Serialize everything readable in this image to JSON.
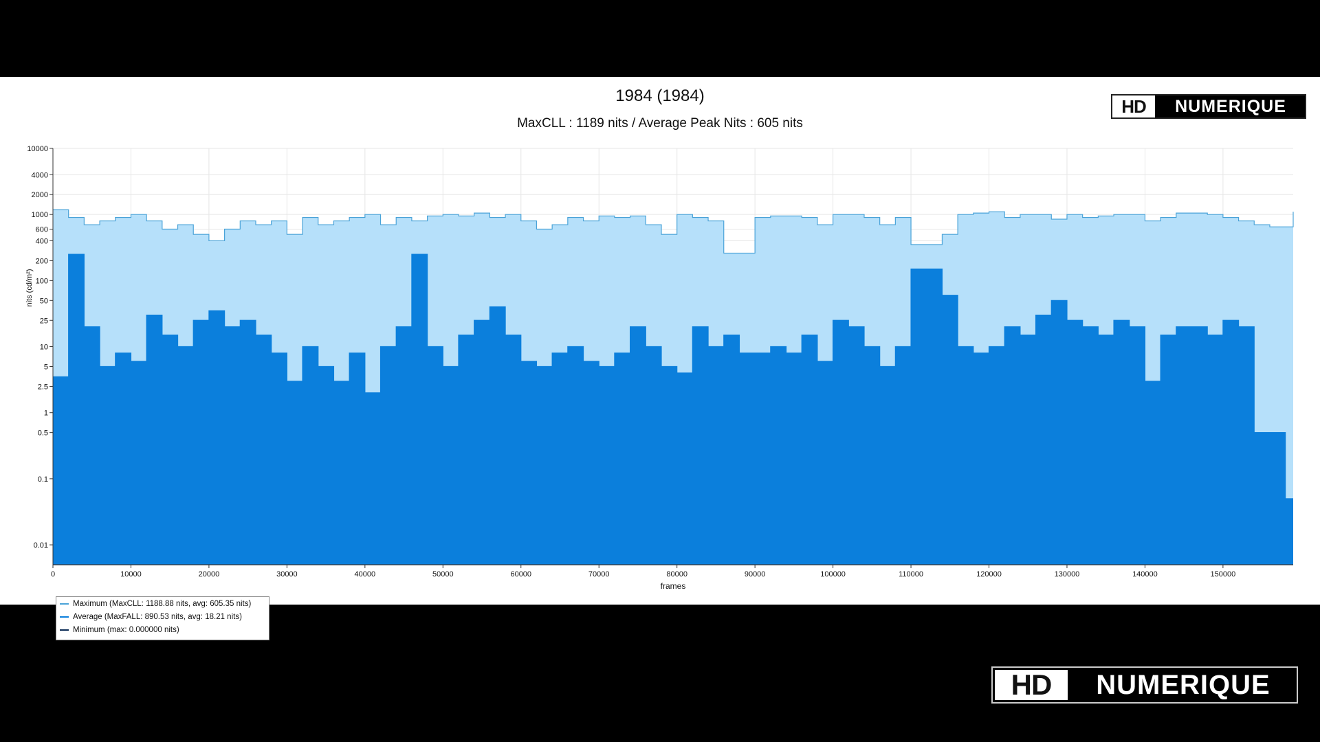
{
  "title": "1984 (1984)",
  "subtitle": "MaxCLL : 1189 nits / Average Peak Nits : 605 nits",
  "logo": {
    "hd": "HD",
    "name": "NUMERIQUE"
  },
  "colors": {
    "maximum": "#b6e0fa",
    "maximum_line": "#4aa3d8",
    "average": "#0b7fdc",
    "minimum": "#0a2a55"
  },
  "chart_data": {
    "type": "area",
    "xlabel": "frames",
    "ylabel": "nits (cd/m²)",
    "yscale": "log",
    "xlim": [
      0,
      159000
    ],
    "ylim": [
      0.005,
      10000
    ],
    "x_ticks": [
      0,
      10000,
      20000,
      30000,
      40000,
      50000,
      60000,
      70000,
      80000,
      90000,
      100000,
      110000,
      120000,
      130000,
      140000,
      150000
    ],
    "y_ticks": [
      10000,
      4000,
      2000,
      1000,
      600,
      400,
      200,
      100,
      50,
      25,
      10,
      5,
      2.5,
      1,
      0.5,
      0.1,
      0.01
    ],
    "grid": true,
    "legend_position": "bottom-left",
    "legend": [
      "Maximum (MaxCLL: 1188.88 nits, avg: 605.35 nits)",
      "Average (MaxFALL: 890.53 nits, avg: 18.21 nits)",
      "Minimum (max: 0.000000 nits)"
    ],
    "series": [
      {
        "name": "Maximum",
        "x": [
          0,
          2000,
          4000,
          6000,
          8000,
          10000,
          12000,
          14000,
          16000,
          18000,
          20000,
          22000,
          24000,
          26000,
          28000,
          30000,
          32000,
          34000,
          36000,
          38000,
          40000,
          42000,
          44000,
          46000,
          48000,
          50000,
          52000,
          54000,
          56000,
          58000,
          60000,
          62000,
          64000,
          66000,
          68000,
          70000,
          72000,
          74000,
          76000,
          78000,
          80000,
          82000,
          84000,
          86000,
          88000,
          90000,
          92000,
          94000,
          96000,
          98000,
          100000,
          102000,
          104000,
          106000,
          108000,
          110000,
          112000,
          114000,
          116000,
          118000,
          120000,
          122000,
          124000,
          126000,
          128000,
          130000,
          132000,
          134000,
          136000,
          138000,
          140000,
          142000,
          144000,
          146000,
          148000,
          150000,
          152000,
          154000,
          156000,
          158000,
          159000
        ],
        "values": [
          1180,
          900,
          700,
          800,
          900,
          1000,
          800,
          600,
          700,
          500,
          400,
          600,
          800,
          700,
          800,
          500,
          900,
          700,
          800,
          900,
          1000,
          700,
          900,
          800,
          950,
          1000,
          950,
          1050,
          900,
          1000,
          800,
          600,
          700,
          900,
          800,
          950,
          900,
          950,
          700,
          500,
          1000,
          900,
          800,
          260,
          260,
          900,
          950,
          950,
          900,
          700,
          1000,
          1000,
          900,
          700,
          900,
          350,
          350,
          500,
          1000,
          1050,
          1100,
          900,
          1000,
          1000,
          850,
          1000,
          900,
          950,
          1000,
          1000,
          800,
          900,
          1050,
          1050,
          1000,
          900,
          800,
          700,
          650,
          650,
          1100
        ]
      },
      {
        "name": "Average",
        "x": [
          0,
          2000,
          4000,
          6000,
          8000,
          10000,
          12000,
          14000,
          16000,
          18000,
          20000,
          22000,
          24000,
          26000,
          28000,
          30000,
          32000,
          34000,
          36000,
          38000,
          40000,
          42000,
          44000,
          46000,
          48000,
          50000,
          52000,
          54000,
          56000,
          58000,
          60000,
          62000,
          64000,
          66000,
          68000,
          70000,
          72000,
          74000,
          76000,
          78000,
          80000,
          82000,
          84000,
          86000,
          88000,
          90000,
          92000,
          94000,
          96000,
          98000,
          100000,
          102000,
          104000,
          106000,
          108000,
          110000,
          112000,
          114000,
          116000,
          118000,
          120000,
          122000,
          124000,
          126000,
          128000,
          130000,
          132000,
          134000,
          136000,
          138000,
          140000,
          142000,
          144000,
          146000,
          148000,
          150000,
          152000,
          154000,
          156000,
          158000,
          159000
        ],
        "values": [
          3.5,
          250,
          20,
          5,
          8,
          6,
          30,
          15,
          10,
          25,
          35,
          20,
          25,
          15,
          8,
          3,
          10,
          5,
          3,
          8,
          2,
          10,
          20,
          250,
          10,
          5,
          15,
          25,
          40,
          15,
          6,
          5,
          8,
          10,
          6,
          5,
          8,
          20,
          10,
          5,
          4,
          20,
          10,
          15,
          8,
          8,
          10,
          8,
          15,
          6,
          25,
          20,
          10,
          5,
          10,
          150,
          150,
          60,
          10,
          8,
          10,
          20,
          15,
          30,
          50,
          25,
          20,
          15,
          25,
          20,
          3,
          15,
          20,
          20,
          15,
          25,
          20,
          0.5,
          0.5,
          0.05,
          0.05
        ]
      },
      {
        "name": "Minimum",
        "x": [
          0,
          159000
        ],
        "values": [
          0.005,
          0.005
        ]
      }
    ]
  }
}
